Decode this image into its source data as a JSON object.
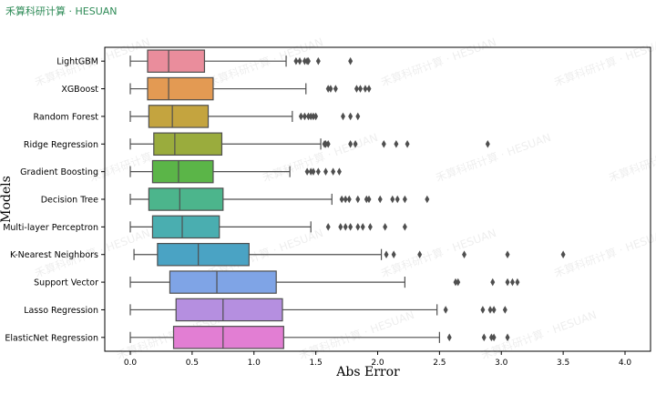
{
  "brand": {
    "text": "禾算科研计算 · HESUAN"
  },
  "chart_data": {
    "type": "box",
    "orientation": "horizontal",
    "xlabel": "Abs Error",
    "ylabel": "Models",
    "xlim": [
      -0.2,
      4.0
    ],
    "x_ticks": [
      0.0,
      0.5,
      1.0,
      1.5,
      2.0,
      2.5,
      3.0,
      3.5,
      4.0
    ],
    "x_tick_labels": [
      "0.0",
      "0.5",
      "1.0",
      "1.5",
      "2.0",
      "2.5",
      "3.0",
      "3.5",
      "4.0"
    ],
    "grid": false,
    "watermark": "禾算科研计算 · HESUAN",
    "series": [
      {
        "name": "LightGBM",
        "color": "#ea8d9c",
        "whisker_low": 0.0,
        "q1": 0.14,
        "median": 0.31,
        "q3": 0.6,
        "whisker_high": 1.26,
        "outliers": [
          1.34,
          1.37,
          1.41,
          1.43,
          1.44,
          1.52,
          1.78
        ]
      },
      {
        "name": "XGBoost",
        "color": "#e39a53",
        "whisker_low": 0.0,
        "q1": 0.14,
        "median": 0.31,
        "q3": 0.67,
        "whisker_high": 1.42,
        "outliers": [
          1.6,
          1.62,
          1.66,
          1.83,
          1.86,
          1.9,
          1.93
        ]
      },
      {
        "name": "Random Forest",
        "color": "#c4a43f",
        "whisker_low": 0.0,
        "q1": 0.15,
        "median": 0.34,
        "q3": 0.63,
        "whisker_high": 1.31,
        "outliers": [
          1.38,
          1.41,
          1.44,
          1.46,
          1.48,
          1.5,
          1.72,
          1.78,
          1.84
        ]
      },
      {
        "name": "Ridge Regression",
        "color": "#9aac3d",
        "whisker_low": 0.0,
        "q1": 0.19,
        "median": 0.36,
        "q3": 0.74,
        "whisker_high": 1.54,
        "outliers": [
          1.57,
          1.58,
          1.6,
          1.78,
          1.82,
          2.05,
          2.15,
          2.24,
          2.89
        ]
      },
      {
        "name": "Gradient Boosting",
        "color": "#5bb548",
        "whisker_low": 0.0,
        "q1": 0.18,
        "median": 0.39,
        "q3": 0.67,
        "whisker_high": 1.29,
        "outliers": [
          1.43,
          1.46,
          1.48,
          1.52,
          1.58,
          1.64,
          1.69
        ]
      },
      {
        "name": "Decision Tree",
        "color": "#4cb58c",
        "whisker_low": 0.0,
        "q1": 0.15,
        "median": 0.4,
        "q3": 0.75,
        "whisker_high": 1.63,
        "outliers": [
          1.71,
          1.74,
          1.77,
          1.84,
          1.91,
          1.93,
          2.02,
          2.12,
          2.16,
          2.22,
          2.4
        ]
      },
      {
        "name": "Multi-layer Perceptron",
        "color": "#4aaeb0",
        "whisker_low": 0.0,
        "q1": 0.18,
        "median": 0.42,
        "q3": 0.72,
        "whisker_high": 1.46,
        "outliers": [
          1.6,
          1.7,
          1.74,
          1.78,
          1.84,
          1.88,
          1.94,
          2.06,
          2.22
        ]
      },
      {
        "name": "K-Nearest Neighbors",
        "color": "#4aa3c4",
        "whisker_low": 0.03,
        "q1": 0.22,
        "median": 0.55,
        "q3": 0.96,
        "whisker_high": 2.03,
        "outliers": [
          2.07,
          2.13,
          2.34,
          2.7,
          3.05,
          3.5
        ]
      },
      {
        "name": "Support Vector",
        "color": "#7fa4e6",
        "whisker_low": 0.0,
        "q1": 0.32,
        "median": 0.7,
        "q3": 1.18,
        "whisker_high": 2.22,
        "outliers": [
          2.63,
          2.65,
          2.93,
          3.05,
          3.09,
          3.13
        ]
      },
      {
        "name": "Lasso Regression",
        "color": "#b58fe0",
        "whisker_low": 0.0,
        "q1": 0.37,
        "median": 0.75,
        "q3": 1.23,
        "whisker_high": 2.48,
        "outliers": [
          2.55,
          2.85,
          2.91,
          2.94,
          3.03
        ]
      },
      {
        "name": "ElasticNet Regression",
        "color": "#e27ed3",
        "whisker_low": 0.0,
        "q1": 0.35,
        "median": 0.75,
        "q3": 1.24,
        "whisker_high": 2.5,
        "outliers": [
          2.58,
          2.86,
          2.92,
          2.94,
          3.05
        ]
      }
    ]
  }
}
